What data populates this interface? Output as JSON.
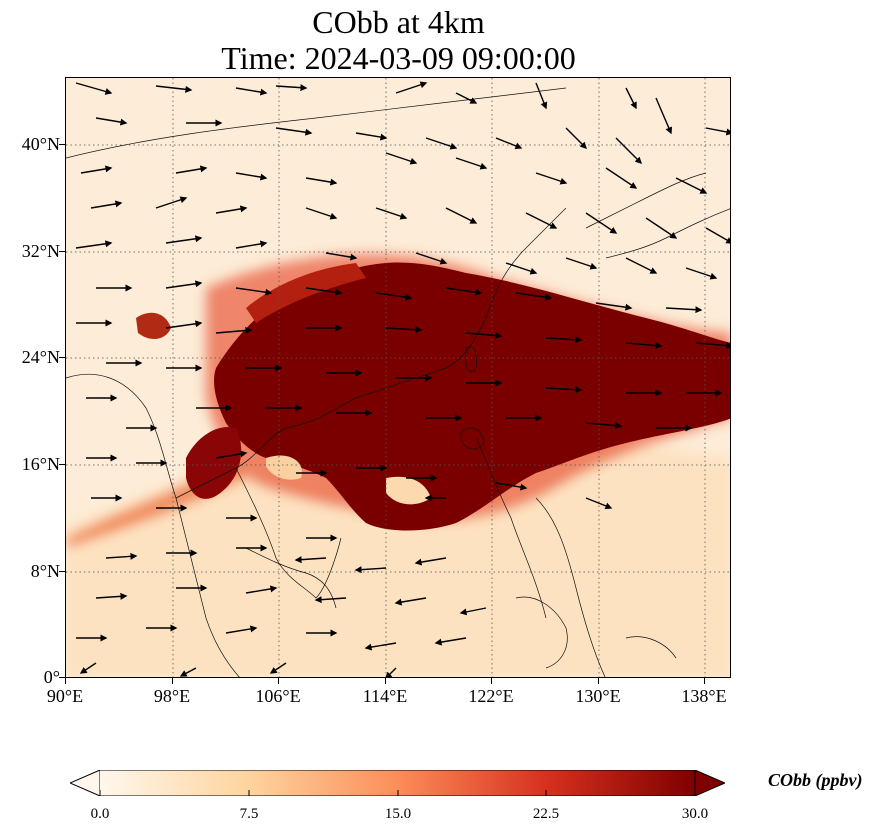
{
  "title": {
    "line1": "CObb at 4km",
    "line2": "Time: 2024-03-09 09:00:00"
  },
  "map": {
    "extent": {
      "lon_min": 90,
      "lon_max": 140,
      "lat_min": 0,
      "lat_max": 45
    },
    "lat_ticks": [
      {
        "value": 0,
        "label": "0°"
      },
      {
        "value": 8,
        "label": "8°N"
      },
      {
        "value": 16,
        "label": "16°N"
      },
      {
        "value": 24,
        "label": "24°N"
      },
      {
        "value": 32,
        "label": "32°N"
      },
      {
        "value": 40,
        "label": "40°N"
      }
    ],
    "lon_ticks": [
      {
        "value": 90,
        "label": "90°E"
      },
      {
        "value": 98,
        "label": "98°E"
      },
      {
        "value": 106,
        "label": "106°E"
      },
      {
        "value": 114,
        "label": "114°E"
      },
      {
        "value": 122,
        "label": "122°E"
      },
      {
        "value": 130,
        "label": "130°E"
      },
      {
        "value": 138,
        "label": "138°E"
      }
    ],
    "gridlines": true,
    "field": "CObb concentration (ppbv), maximum over eastern China / South China Sea band 18–30°N",
    "wind_vectors": true
  },
  "colorbar": {
    "label": "CObb (ppbv)",
    "cmap": "OrRd",
    "min": 0.0,
    "max": 30.0,
    "ticks": [
      "0.0",
      "7.5",
      "15.0",
      "22.5",
      "30.0"
    ],
    "extend": "both",
    "colors": [
      "#fff7ec",
      "#fdd49e",
      "#fc8d59",
      "#d7301f",
      "#7f0000"
    ]
  }
}
